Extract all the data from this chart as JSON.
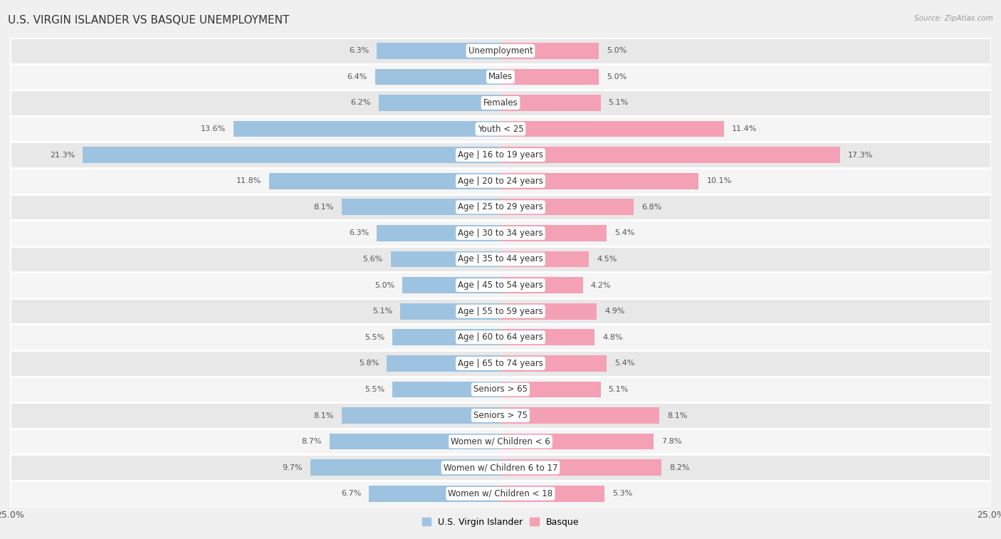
{
  "title": "U.S. VIRGIN ISLANDER VS BASQUE UNEMPLOYMENT",
  "source": "Source: ZipAtlas.com",
  "categories": [
    "Unemployment",
    "Males",
    "Females",
    "Youth < 25",
    "Age | 16 to 19 years",
    "Age | 20 to 24 years",
    "Age | 25 to 29 years",
    "Age | 30 to 34 years",
    "Age | 35 to 44 years",
    "Age | 45 to 54 years",
    "Age | 55 to 59 years",
    "Age | 60 to 64 years",
    "Age | 65 to 74 years",
    "Seniors > 65",
    "Seniors > 75",
    "Women w/ Children < 6",
    "Women w/ Children 6 to 17",
    "Women w/ Children < 18"
  ],
  "virgin_islander": [
    6.3,
    6.4,
    6.2,
    13.6,
    21.3,
    11.8,
    8.1,
    6.3,
    5.6,
    5.0,
    5.1,
    5.5,
    5.8,
    5.5,
    8.1,
    8.7,
    9.7,
    6.7
  ],
  "basque": [
    5.0,
    5.0,
    5.1,
    11.4,
    17.3,
    10.1,
    6.8,
    5.4,
    4.5,
    4.2,
    4.9,
    4.8,
    5.4,
    5.1,
    8.1,
    7.8,
    8.2,
    5.3
  ],
  "vi_color": "#9dc3e0",
  "basque_color": "#f4a0b5",
  "vi_label": "U.S. Virgin Islander",
  "basque_label": "Basque",
  "axis_limit": 25.0,
  "bg_color": "#f0f0f0",
  "row_color_even": "#e8e8e8",
  "row_color_odd": "#f5f5f5",
  "title_fontsize": 11,
  "label_fontsize": 8.5,
  "value_fontsize": 8
}
